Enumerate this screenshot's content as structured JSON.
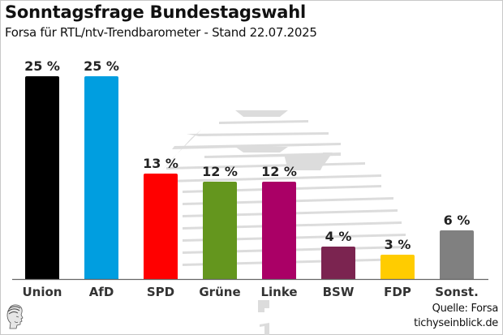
{
  "header": {
    "title": "Sonntagsfrage Bundestagswahl",
    "subtitle": "Forsa für RTL/ntv-Trendbarometer - Stand 22.07.2025"
  },
  "footer": {
    "source": "Quelle: Forsa",
    "site": "tichyseinblick.de",
    "logo_icon": "classical-head-logo-icon"
  },
  "chart_data": {
    "type": "bar",
    "title": "Sonntagsfrage Bundestagswahl",
    "subtitle": "Forsa für RTL/ntv-Trendbarometer - Stand 22.07.2025",
    "xlabel": "",
    "ylabel": "",
    "ylim": [
      0,
      25
    ],
    "grid": false,
    "legend": "none",
    "unit": "%",
    "categories": [
      "Union",
      "AfD",
      "SPD",
      "Grüne",
      "Linke",
      "BSW",
      "FDP",
      "Sonst."
    ],
    "values": [
      25,
      25,
      13,
      12,
      12,
      4,
      3,
      6
    ],
    "labels": [
      "25 %",
      "25 %",
      "13 %",
      "12 %",
      "12 %",
      "4 %",
      "3 %",
      "6 %"
    ],
    "colors": [
      "#000000",
      "#009ee0",
      "#ff0000",
      "#64961e",
      "#aa0066",
      "#7b2450",
      "#ffcc00",
      "#808080"
    ]
  }
}
